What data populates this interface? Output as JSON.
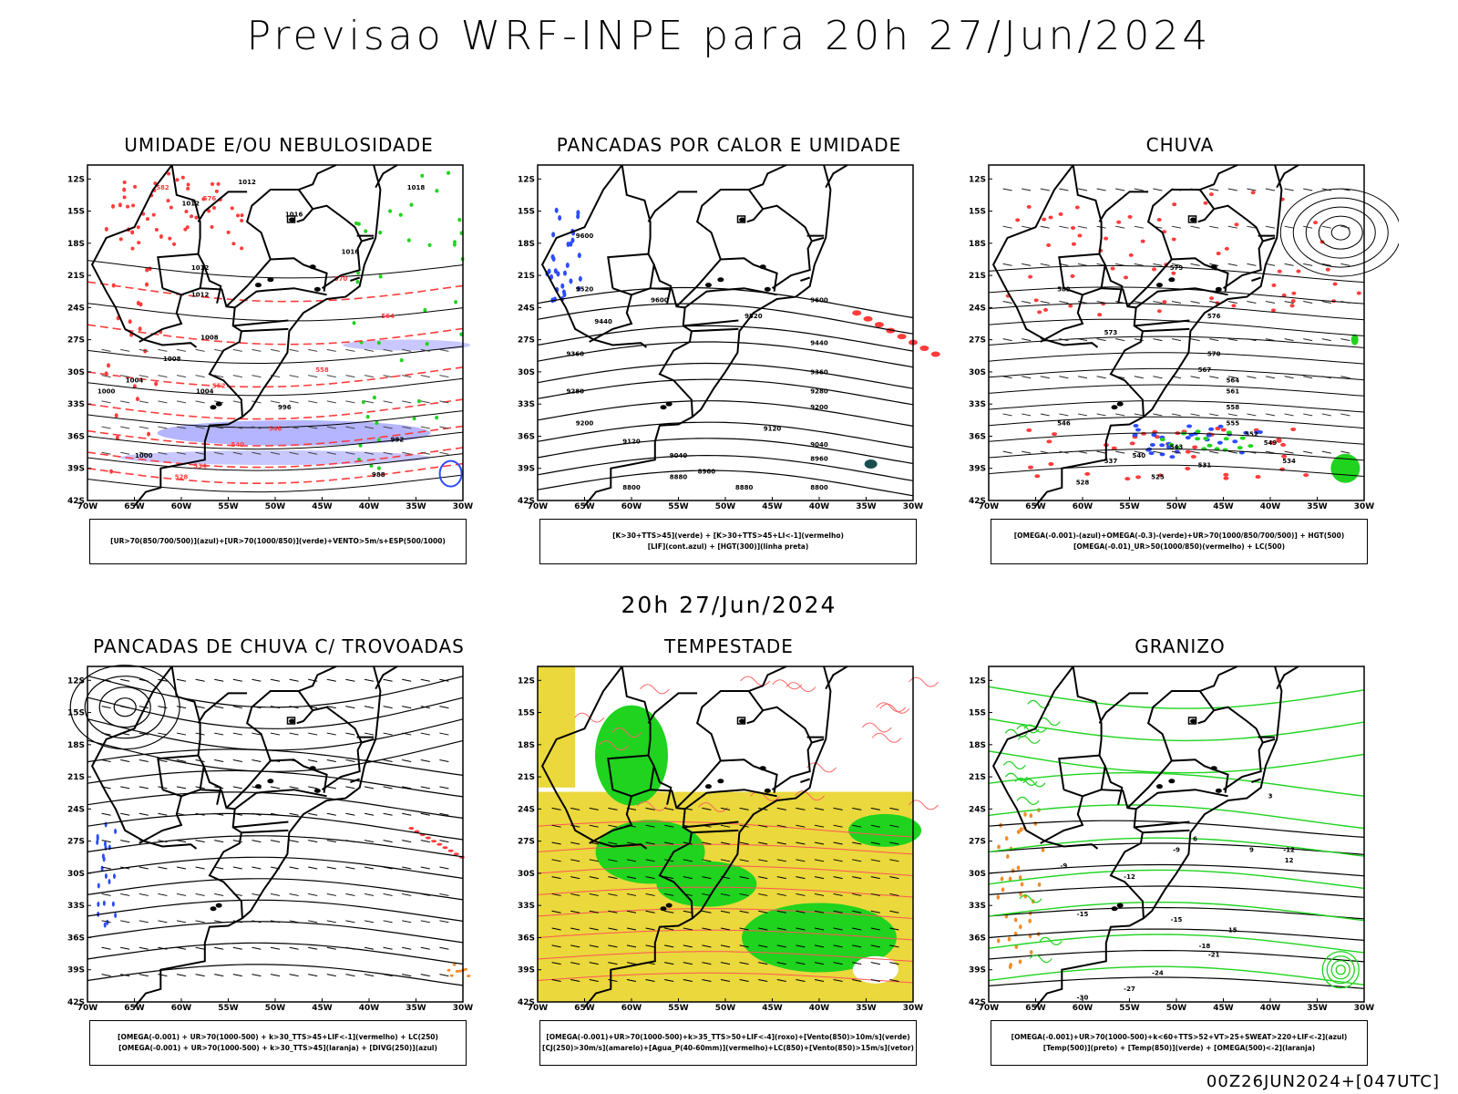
{
  "header": {
    "title": "Previsao WRF-INPE  para 20h 27/Jun/2024"
  },
  "mid_time": "20h 27/Jun/2024",
  "footer": "00Z26JUN2024+[047UTC]",
  "axes": {
    "lat_labels": [
      "12S",
      "15S",
      "18S",
      "21S",
      "24S",
      "27S",
      "30S",
      "33S",
      "36S",
      "39S",
      "42S"
    ],
    "lon_labels": [
      "70W",
      "65W",
      "60W",
      "55W",
      "50W",
      "45W",
      "40W",
      "35W",
      "30W"
    ]
  },
  "colors": {
    "red": "#ff3c3c",
    "green": "#1fd31f",
    "blue": "#2d4cff",
    "lightblue": "#a3a3ff",
    "yellow": "#ead83c",
    "orange": "#f28c28",
    "black": "#000000"
  },
  "panels": [
    {
      "title": "UMIDADE E/OU NEBULOSIDADE",
      "legend": [
        "[UR>70(850/700/500)](azul)+[UR>70(1000/850)](verde)+VENTO>5m/s+ESP(500/1000)"
      ],
      "contour_labels": [
        "1012",
        "1012",
        "1016",
        "1018",
        "1012",
        "1008",
        "1004",
        "1000",
        "996",
        "992",
        "988",
        "1016",
        "1012",
        "1008",
        "1004",
        "1000"
      ],
      "red_labels": [
        "576",
        "570",
        "564",
        "558",
        "552",
        "546",
        "540",
        "534",
        "528",
        "582"
      ]
    },
    {
      "title": "PANCADAS POR CALOR E UMIDADE",
      "legend": [
        "[K>30+TTS>45](verde) + [K>30+TTS>45+LI<-1](vermelho)",
        "[LIF](cont.azul) + [HGT(300)](linha preta)"
      ],
      "contour_labels": [
        "9600",
        "9600",
        "9520",
        "9440",
        "9360",
        "9280",
        "9200",
        "9120",
        "9040",
        "8960",
        "8880",
        "8800",
        "9600",
        "9520",
        "9440",
        "9360",
        "9280",
        "9200",
        "9120",
        "9040",
        "8960",
        "8880",
        "8800"
      ]
    },
    {
      "title": "CHUVA",
      "legend": [
        "[OMEGA(-0.001)-(azul)+OMEGA(-0.3)-(verde)+UR>70(1000/850/700/500)] + HGT(500)",
        "[OMEGA(-0.01)_UR>50(1000/850)(vermelho) + LC(500)"
      ],
      "contour_labels": [
        "582",
        "579",
        "576",
        "573",
        "570",
        "567",
        "564",
        "561",
        "558",
        "555",
        "552",
        "549",
        "546",
        "543",
        "540",
        "537",
        "534",
        "531",
        "528",
        "525"
      ]
    },
    {
      "title": "PANCADAS DE CHUVA C/ TROVOADAS",
      "legend": [
        "[OMEGA(-0.001) + UR>70(1000-500) + k>30_TTS>45+LIF<-1](vermelho) + LC(250)",
        "[OMEGA(-0.001) + UR>70(1000-500) + k>30_TTS>45](laranja) + [DIVG(250)](azul)"
      ]
    },
    {
      "title": "TEMPESTADE",
      "legend": [
        "[OMEGA(-0.001)+UR>70(1000-500)+k>35_TTS>50+LIF<-4](roxo)+[Vento(850)>10m/s](verde)",
        "[CJ(250)>30m/s](amarelo)+[Agua_P(40-60mm)](vermelho)+LC(850)+[Vento(850)>15m/s](vetor)"
      ]
    },
    {
      "title": "GRANIZO",
      "legend": [
        "[OMEGA(-0.001)+UR>70(1000-500)+k<60+TTS>52+VT>25+SWEAT>220+LIF<-2](azul)",
        "[Temp(500)](preto) + [Temp(850)](verde) + [OMEGA(500)<-2](laranja)"
      ],
      "contour_labels": [
        "-9",
        "-9",
        "-12",
        "-12",
        "-15",
        "-15",
        "-18",
        "-21",
        "-24",
        "-27",
        "-30",
        "15",
        "12",
        "9",
        "6",
        "3"
      ]
    }
  ]
}
